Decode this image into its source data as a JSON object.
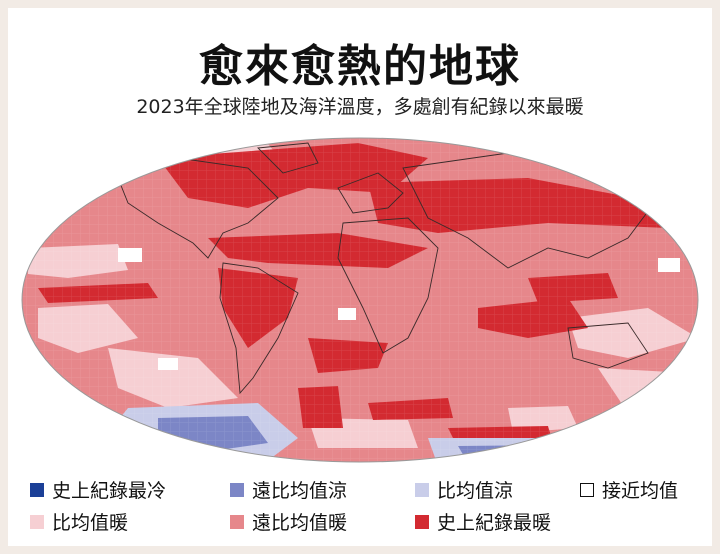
{
  "header": {
    "title": "愈來愈熱的地球",
    "subtitle": "2023年全球陸地及海洋溫度，多處創有紀錄以來最暖"
  },
  "legend": {
    "items": [
      {
        "label": "史上紀錄最冷",
        "color": "#1b3f97"
      },
      {
        "label": "遠比均值涼",
        "color": "#7c86c6"
      },
      {
        "label": "比均值涼",
        "color": "#c9cde9"
      },
      {
        "label": "接近均值",
        "color": "#ffffff"
      },
      {
        "label": "比均值暖",
        "color": "#f6cfd3"
      },
      {
        "label": "遠比均值暖",
        "color": "#e6878b"
      },
      {
        "label": "史上紀錄最暖",
        "color": "#d32a31"
      }
    ]
  }
}
